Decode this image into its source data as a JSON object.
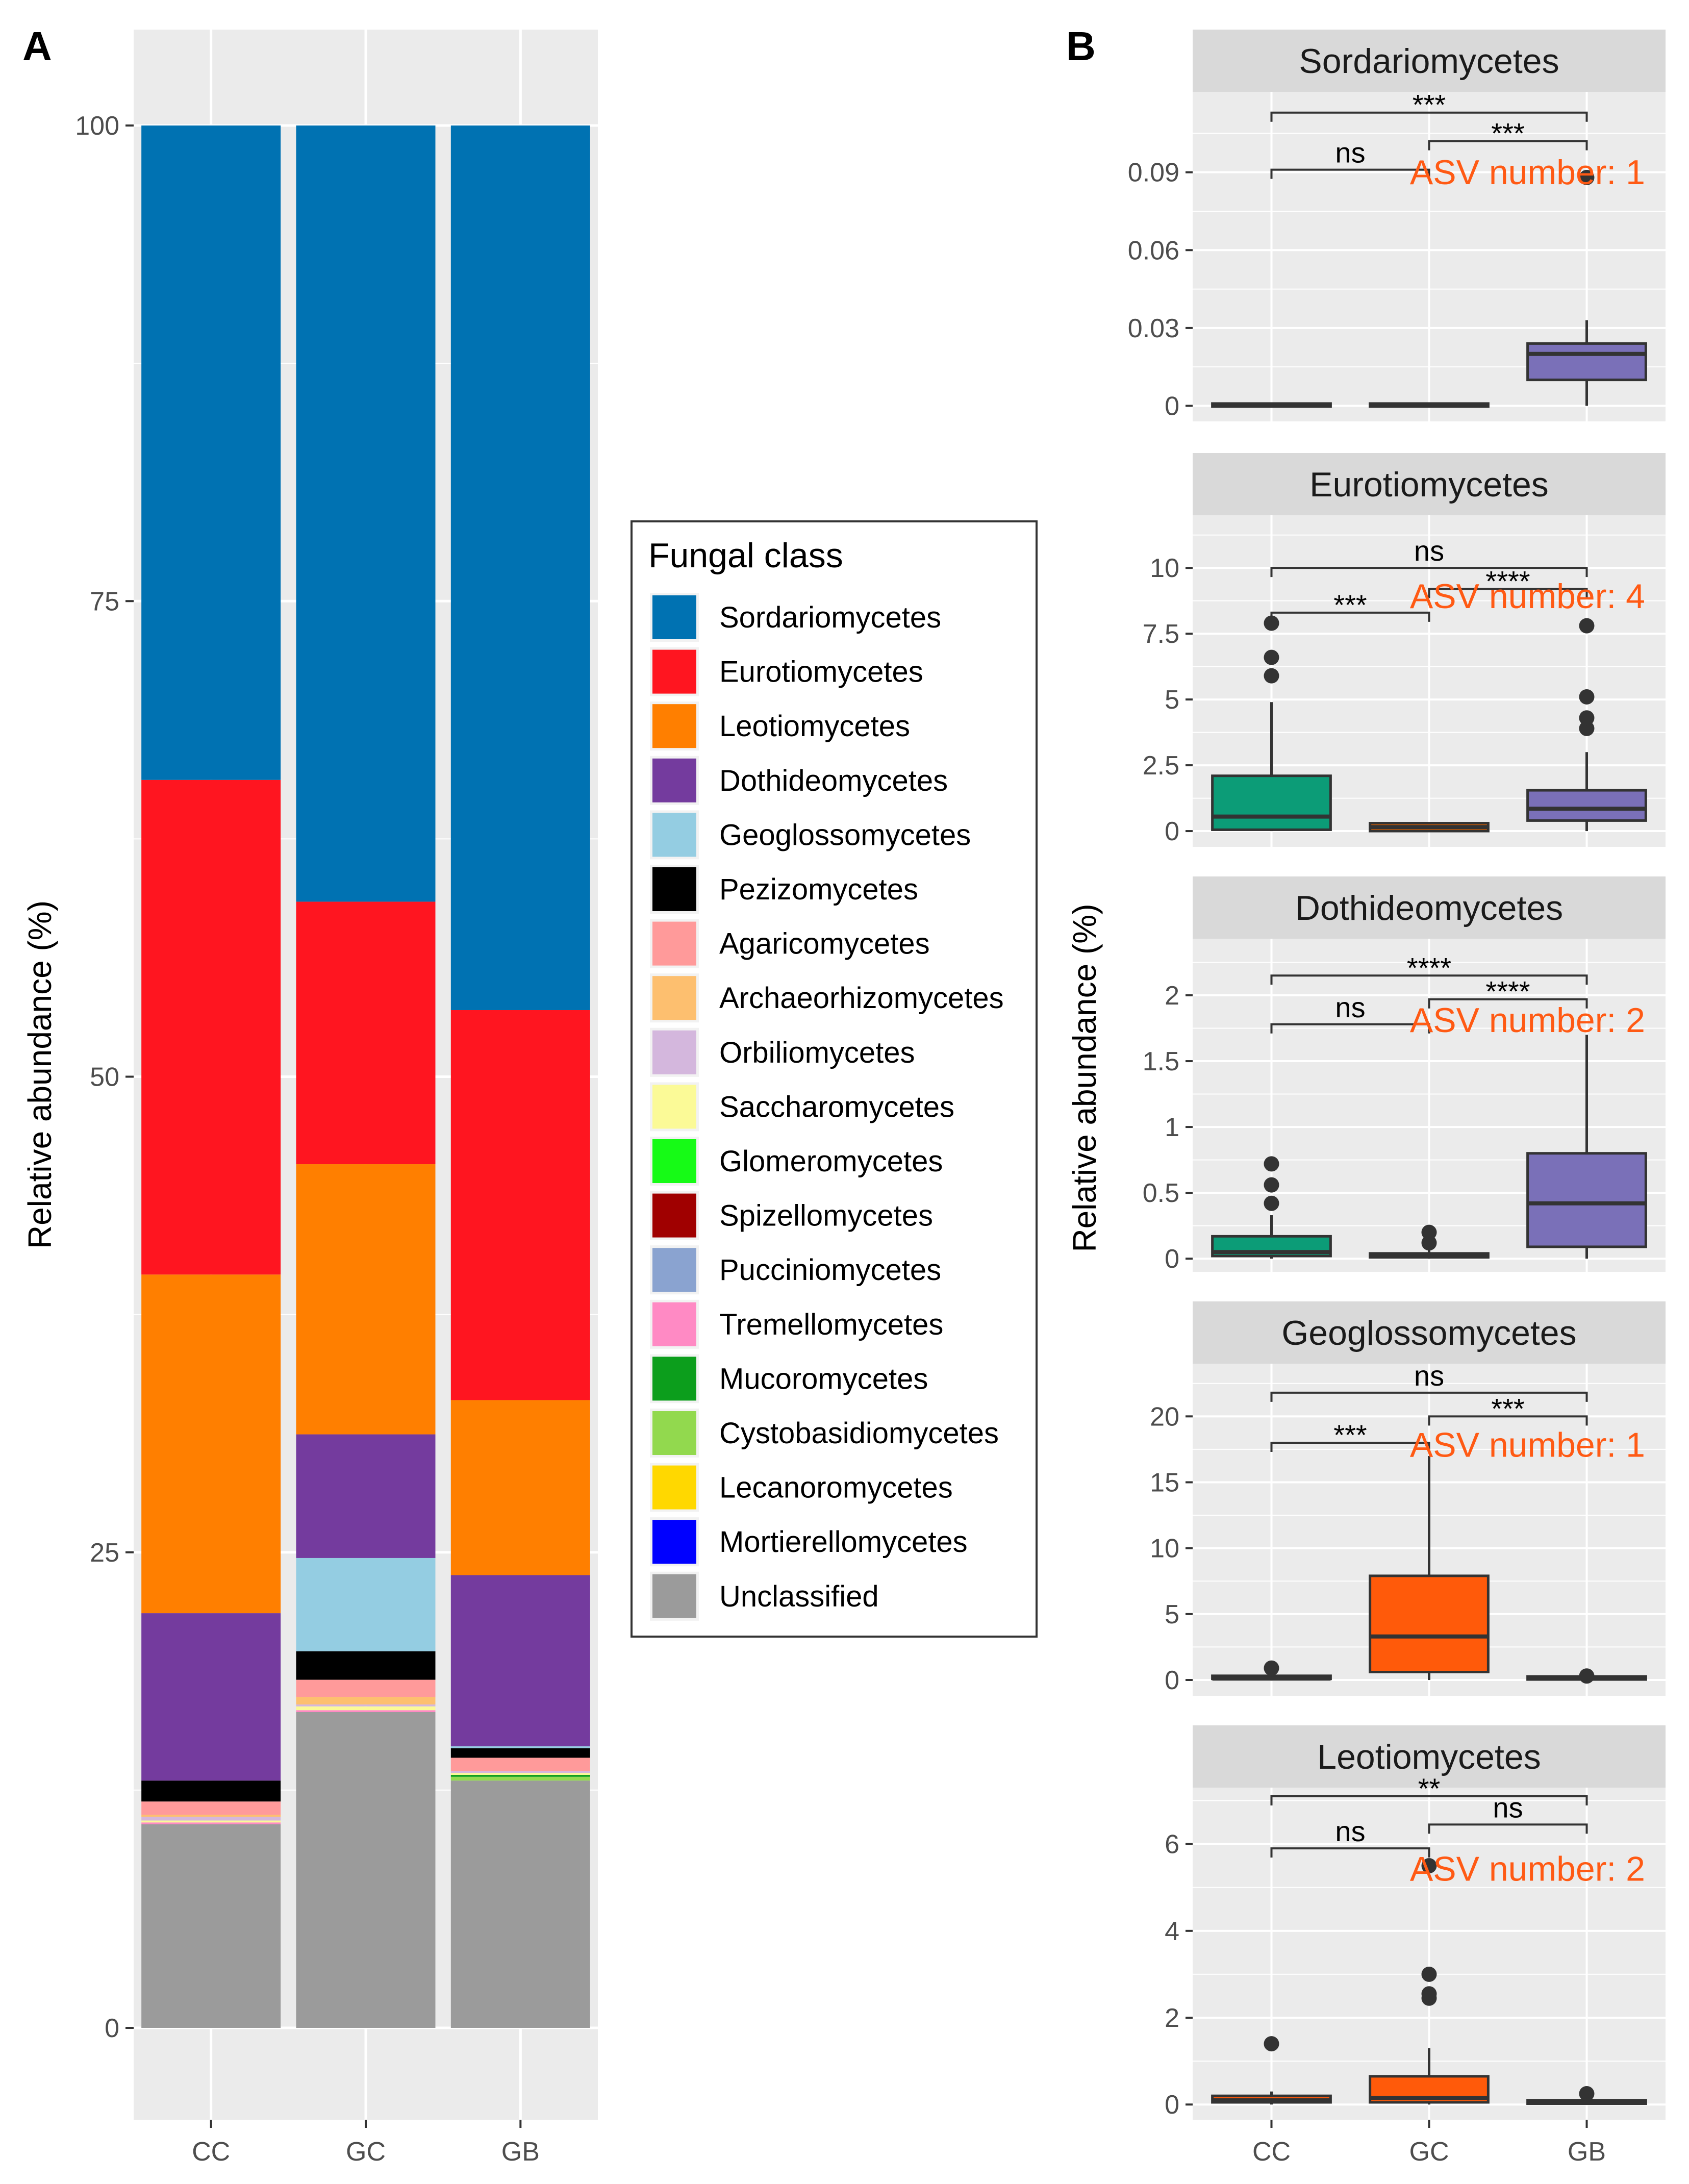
{
  "panel_labels": {
    "a": "A",
    "b": "B"
  },
  "legend": {
    "title": "Fungal class",
    "items": [
      {
        "label": "Sordariomycetes",
        "color": "#0072b2"
      },
      {
        "label": "Eurotiomycetes",
        "color": "#ff1520"
      },
      {
        "label": "Leotiomycetes",
        "color": "#ff7f00"
      },
      {
        "label": "Dothideomycetes",
        "color": "#743b9e"
      },
      {
        "label": "Geoglossomycetes",
        "color": "#94cde2"
      },
      {
        "label": "Pezizomycetes",
        "color": "#000000"
      },
      {
        "label": "Agaricomycetes",
        "color": "#ff9a9a"
      },
      {
        "label": "Archaeorhizomycetes",
        "color": "#fdbf6f"
      },
      {
        "label": "Orbiliomycetes",
        "color": "#d4b7dd"
      },
      {
        "label": "Saccharomycetes",
        "color": "#fbfa97"
      },
      {
        "label": "Glomeromycetes",
        "color": "#16fb16"
      },
      {
        "label": "Spizellomycetes",
        "color": "#a00000"
      },
      {
        "label": "Pucciniomycetes",
        "color": "#8aa3d0"
      },
      {
        "label": "Tremellomycetes",
        "color": "#ff8ac4"
      },
      {
        "label": "Mucoromycetes",
        "color": "#0c9e1c"
      },
      {
        "label": "Cystobasidiomycetes",
        "color": "#92d94e"
      },
      {
        "label": "Lecanoromycetes",
        "color": "#ffd800"
      },
      {
        "label": "Mortierellomycetes",
        "color": "#0000ff"
      },
      {
        "label": "Unclassified",
        "color": "#9b9b9b"
      }
    ]
  },
  "colors": {
    "panel_bg": "#ebebeb",
    "grid": "#ffffff",
    "strip_bg": "#d9d9d9",
    "box_cc": "#0c9c77",
    "box_gb": "#7a70b8",
    "box_gc_orange": "#ff5a0a",
    "asv_text": "#ff5a14"
  },
  "chart_data": [
    {
      "id": "A",
      "type": "bar",
      "stacked": true,
      "ylabel": "Relative abundance (%)",
      "xlabel": "",
      "ylim": [
        0,
        100
      ],
      "yticks": [
        0,
        25,
        50,
        75,
        100
      ],
      "categories": [
        "CC",
        "GC",
        "GB"
      ],
      "series": [
        {
          "name": "Unclassified",
          "values": [
            10.7,
            16.6,
            13.0
          ]
        },
        {
          "name": "Mortierellomycetes",
          "values": [
            0.0,
            0.0,
            0.0
          ]
        },
        {
          "name": "Lecanoromycetes",
          "values": [
            0.0,
            0.0,
            0.0
          ]
        },
        {
          "name": "Cystobasidiomycetes",
          "values": [
            0.0,
            0.0,
            0.2
          ]
        },
        {
          "name": "Mucoromycetes",
          "values": [
            0.0,
            0.0,
            0.1
          ]
        },
        {
          "name": "Tremellomycetes",
          "values": [
            0.1,
            0.1,
            0.0
          ]
        },
        {
          "name": "Pucciniomycetes",
          "values": [
            0.0,
            0.0,
            0.0
          ]
        },
        {
          "name": "Spizellomycetes",
          "values": [
            0.0,
            0.0,
            0.0
          ]
        },
        {
          "name": "Glomeromycetes",
          "values": [
            0.0,
            0.0,
            0.0
          ]
        },
        {
          "name": "Saccharomycetes",
          "values": [
            0.1,
            0.2,
            0.1
          ]
        },
        {
          "name": "Orbiliomycetes",
          "values": [
            0.2,
            0.1,
            0.1
          ]
        },
        {
          "name": "Archaeorhizomycetes",
          "values": [
            0.1,
            0.4,
            0.0
          ]
        },
        {
          "name": "Agaricomycetes",
          "values": [
            0.7,
            0.9,
            0.7
          ]
        },
        {
          "name": "Pezizomycetes",
          "values": [
            1.1,
            1.5,
            0.5
          ]
        },
        {
          "name": "Geoglossomycetes",
          "values": [
            0.0,
            4.9,
            0.1
          ]
        },
        {
          "name": "Dothideomycetes",
          "values": [
            8.8,
            6.5,
            9.0
          ]
        },
        {
          "name": "Leotiomycetes",
          "values": [
            17.8,
            14.2,
            9.2
          ]
        },
        {
          "name": "Eurotiomycetes",
          "values": [
            26.0,
            13.8,
            20.5
          ]
        },
        {
          "name": "Sordariomycetes",
          "values": [
            34.4,
            40.8,
            46.5
          ]
        }
      ]
    },
    {
      "id": "B",
      "type": "box",
      "ylabel": "Relative abundance (%)",
      "categories": [
        "CC",
        "GC",
        "GB"
      ],
      "facets": [
        {
          "title": "Sordariomycetes",
          "asv_label": "ASV number: 1",
          "ylim": [
            -0.006,
            0.121
          ],
          "yticks": [
            0,
            0.03,
            0.06,
            0.09
          ],
          "ytick_labels": [
            "0",
            "0.03",
            "0.06",
            "0.09"
          ],
          "box_colors": [
            "#0c9c77",
            "#d95f02",
            "#7a70b8"
          ],
          "boxes": [
            {
              "q1": 0,
              "median": 0,
              "q3": 0.0003,
              "lo": 0,
              "hi": 0.0003,
              "outliers": []
            },
            {
              "q1": 0,
              "median": 0,
              "q3": 0.0003,
              "lo": 0,
              "hi": 0.0003,
              "outliers": []
            },
            {
              "q1": 0.01,
              "median": 0.02,
              "q3": 0.024,
              "lo": 0,
              "hi": 0.033,
              "outliers": [
                0.088
              ]
            }
          ],
          "significance": [
            {
              "from": 0,
              "to": 1,
              "label": "ns",
              "y": 0.091
            },
            {
              "from": 1,
              "to": 2,
              "label": "***",
              "y": 0.102
            },
            {
              "from": 0,
              "to": 2,
              "label": "***",
              "y": 0.113
            }
          ]
        },
        {
          "title": "Eurotiomycetes",
          "asv_label": "ASV number: 4",
          "ylim": [
            -0.6,
            12.0
          ],
          "yticks": [
            0,
            2.5,
            5,
            7.5,
            10
          ],
          "ytick_labels": [
            "0",
            "2.5",
            "5",
            "7.5",
            "10"
          ],
          "box_colors": [
            "#0c9c77",
            "#d95f02",
            "#7a70b8"
          ],
          "boxes": [
            {
              "q1": 0.05,
              "median": 0.55,
              "q3": 2.1,
              "lo": 0,
              "hi": 4.9,
              "outliers": [
                5.9,
                6.6,
                7.9
              ]
            },
            {
              "q1": 0,
              "median": 0.15,
              "q3": 0.3,
              "lo": 0,
              "hi": 0.3,
              "outliers": []
            },
            {
              "q1": 0.4,
              "median": 0.85,
              "q3": 1.55,
              "lo": 0,
              "hi": 3.0,
              "outliers": [
                3.9,
                4.3,
                5.1,
                7.8
              ]
            }
          ],
          "significance": [
            {
              "from": 0,
              "to": 1,
              "label": "***",
              "y": 8.3
            },
            {
              "from": 1,
              "to": 2,
              "label": "****",
              "y": 9.2
            },
            {
              "from": 0,
              "to": 2,
              "label": "ns",
              "y": 10.0
            }
          ]
        },
        {
          "title": "Dothideomycetes",
          "asv_label": "ASV number: 2",
          "ylim": [
            -0.1,
            2.43
          ],
          "yticks": [
            0,
            0.5,
            1,
            1.5,
            2
          ],
          "ytick_labels": [
            "0",
            "0.5",
            "1",
            "1.5",
            "2"
          ],
          "box_colors": [
            "#0c9c77",
            "#d95f02",
            "#7a70b8"
          ],
          "boxes": [
            {
              "q1": 0.02,
              "median": 0.05,
              "q3": 0.17,
              "lo": 0,
              "hi": 0.33,
              "outliers": [
                0.42,
                0.56,
                0.72
              ]
            },
            {
              "q1": 0.01,
              "median": 0.03,
              "q3": 0.04,
              "lo": 0,
              "hi": 0.1,
              "outliers": [
                0.12,
                0.2
              ]
            },
            {
              "q1": 0.09,
              "median": 0.42,
              "q3": 0.8,
              "lo": 0,
              "hi": 1.7,
              "outliers": []
            }
          ],
          "significance": [
            {
              "from": 0,
              "to": 1,
              "label": "ns",
              "y": 1.78
            },
            {
              "from": 1,
              "to": 2,
              "label": "****",
              "y": 1.97
            },
            {
              "from": 0,
              "to": 2,
              "label": "****",
              "y": 2.15
            }
          ]
        },
        {
          "title": "Geoglossomycetes",
          "asv_label": "ASV number: 1",
          "ylim": [
            -1.2,
            24.0
          ],
          "yticks": [
            0,
            5,
            10,
            15,
            20
          ],
          "ytick_labels": [
            "0",
            "5",
            "10",
            "15",
            "20"
          ],
          "box_colors": [
            "#0c9c77",
            "#ff5a0a",
            "#7a70b8"
          ],
          "boxes": [
            {
              "q1": 0,
              "median": 0.1,
              "q3": 0.2,
              "lo": 0,
              "hi": 0.2,
              "outliers": [
                0.9
              ]
            },
            {
              "q1": 0.6,
              "median": 3.3,
              "q3": 7.9,
              "lo": 0,
              "hi": 17.0,
              "outliers": []
            },
            {
              "q1": 0,
              "median": 0.1,
              "q3": 0.15,
              "lo": 0,
              "hi": 0.2,
              "outliers": [
                0.3
              ]
            }
          ],
          "significance": [
            {
              "from": 0,
              "to": 1,
              "label": "***",
              "y": 18.0
            },
            {
              "from": 1,
              "to": 2,
              "label": "***",
              "y": 20.0
            },
            {
              "from": 0,
              "to": 2,
              "label": "ns",
              "y": 21.8
            }
          ]
        },
        {
          "title": "Leotiomycetes",
          "asv_label": "ASV number: 2",
          "ylim": [
            -0.35,
            7.3
          ],
          "yticks": [
            0,
            2,
            4,
            6
          ],
          "ytick_labels": [
            "0",
            "2",
            "4",
            "6"
          ],
          "box_colors": [
            "#ff5a0a",
            "#ff5a0a",
            "#ff5a0a"
          ],
          "boxes": [
            {
              "q1": 0.05,
              "median": 0.1,
              "q3": 0.2,
              "lo": 0,
              "hi": 0.3,
              "outliers": [
                1.4
              ]
            },
            {
              "q1": 0.05,
              "median": 0.15,
              "q3": 0.65,
              "lo": 0,
              "hi": 1.3,
              "outliers": [
                2.45,
                2.55,
                3.0,
                5.5
              ]
            },
            {
              "q1": 0.02,
              "median": 0.05,
              "q3": 0.1,
              "lo": 0,
              "hi": 0.1,
              "outliers": [
                0.25
              ]
            }
          ],
          "significance": [
            {
              "from": 0,
              "to": 1,
              "label": "ns",
              "y": 5.9
            },
            {
              "from": 1,
              "to": 2,
              "label": "ns",
              "y": 6.45
            },
            {
              "from": 0,
              "to": 2,
              "label": "**",
              "y": 7.1
            }
          ]
        }
      ]
    }
  ]
}
